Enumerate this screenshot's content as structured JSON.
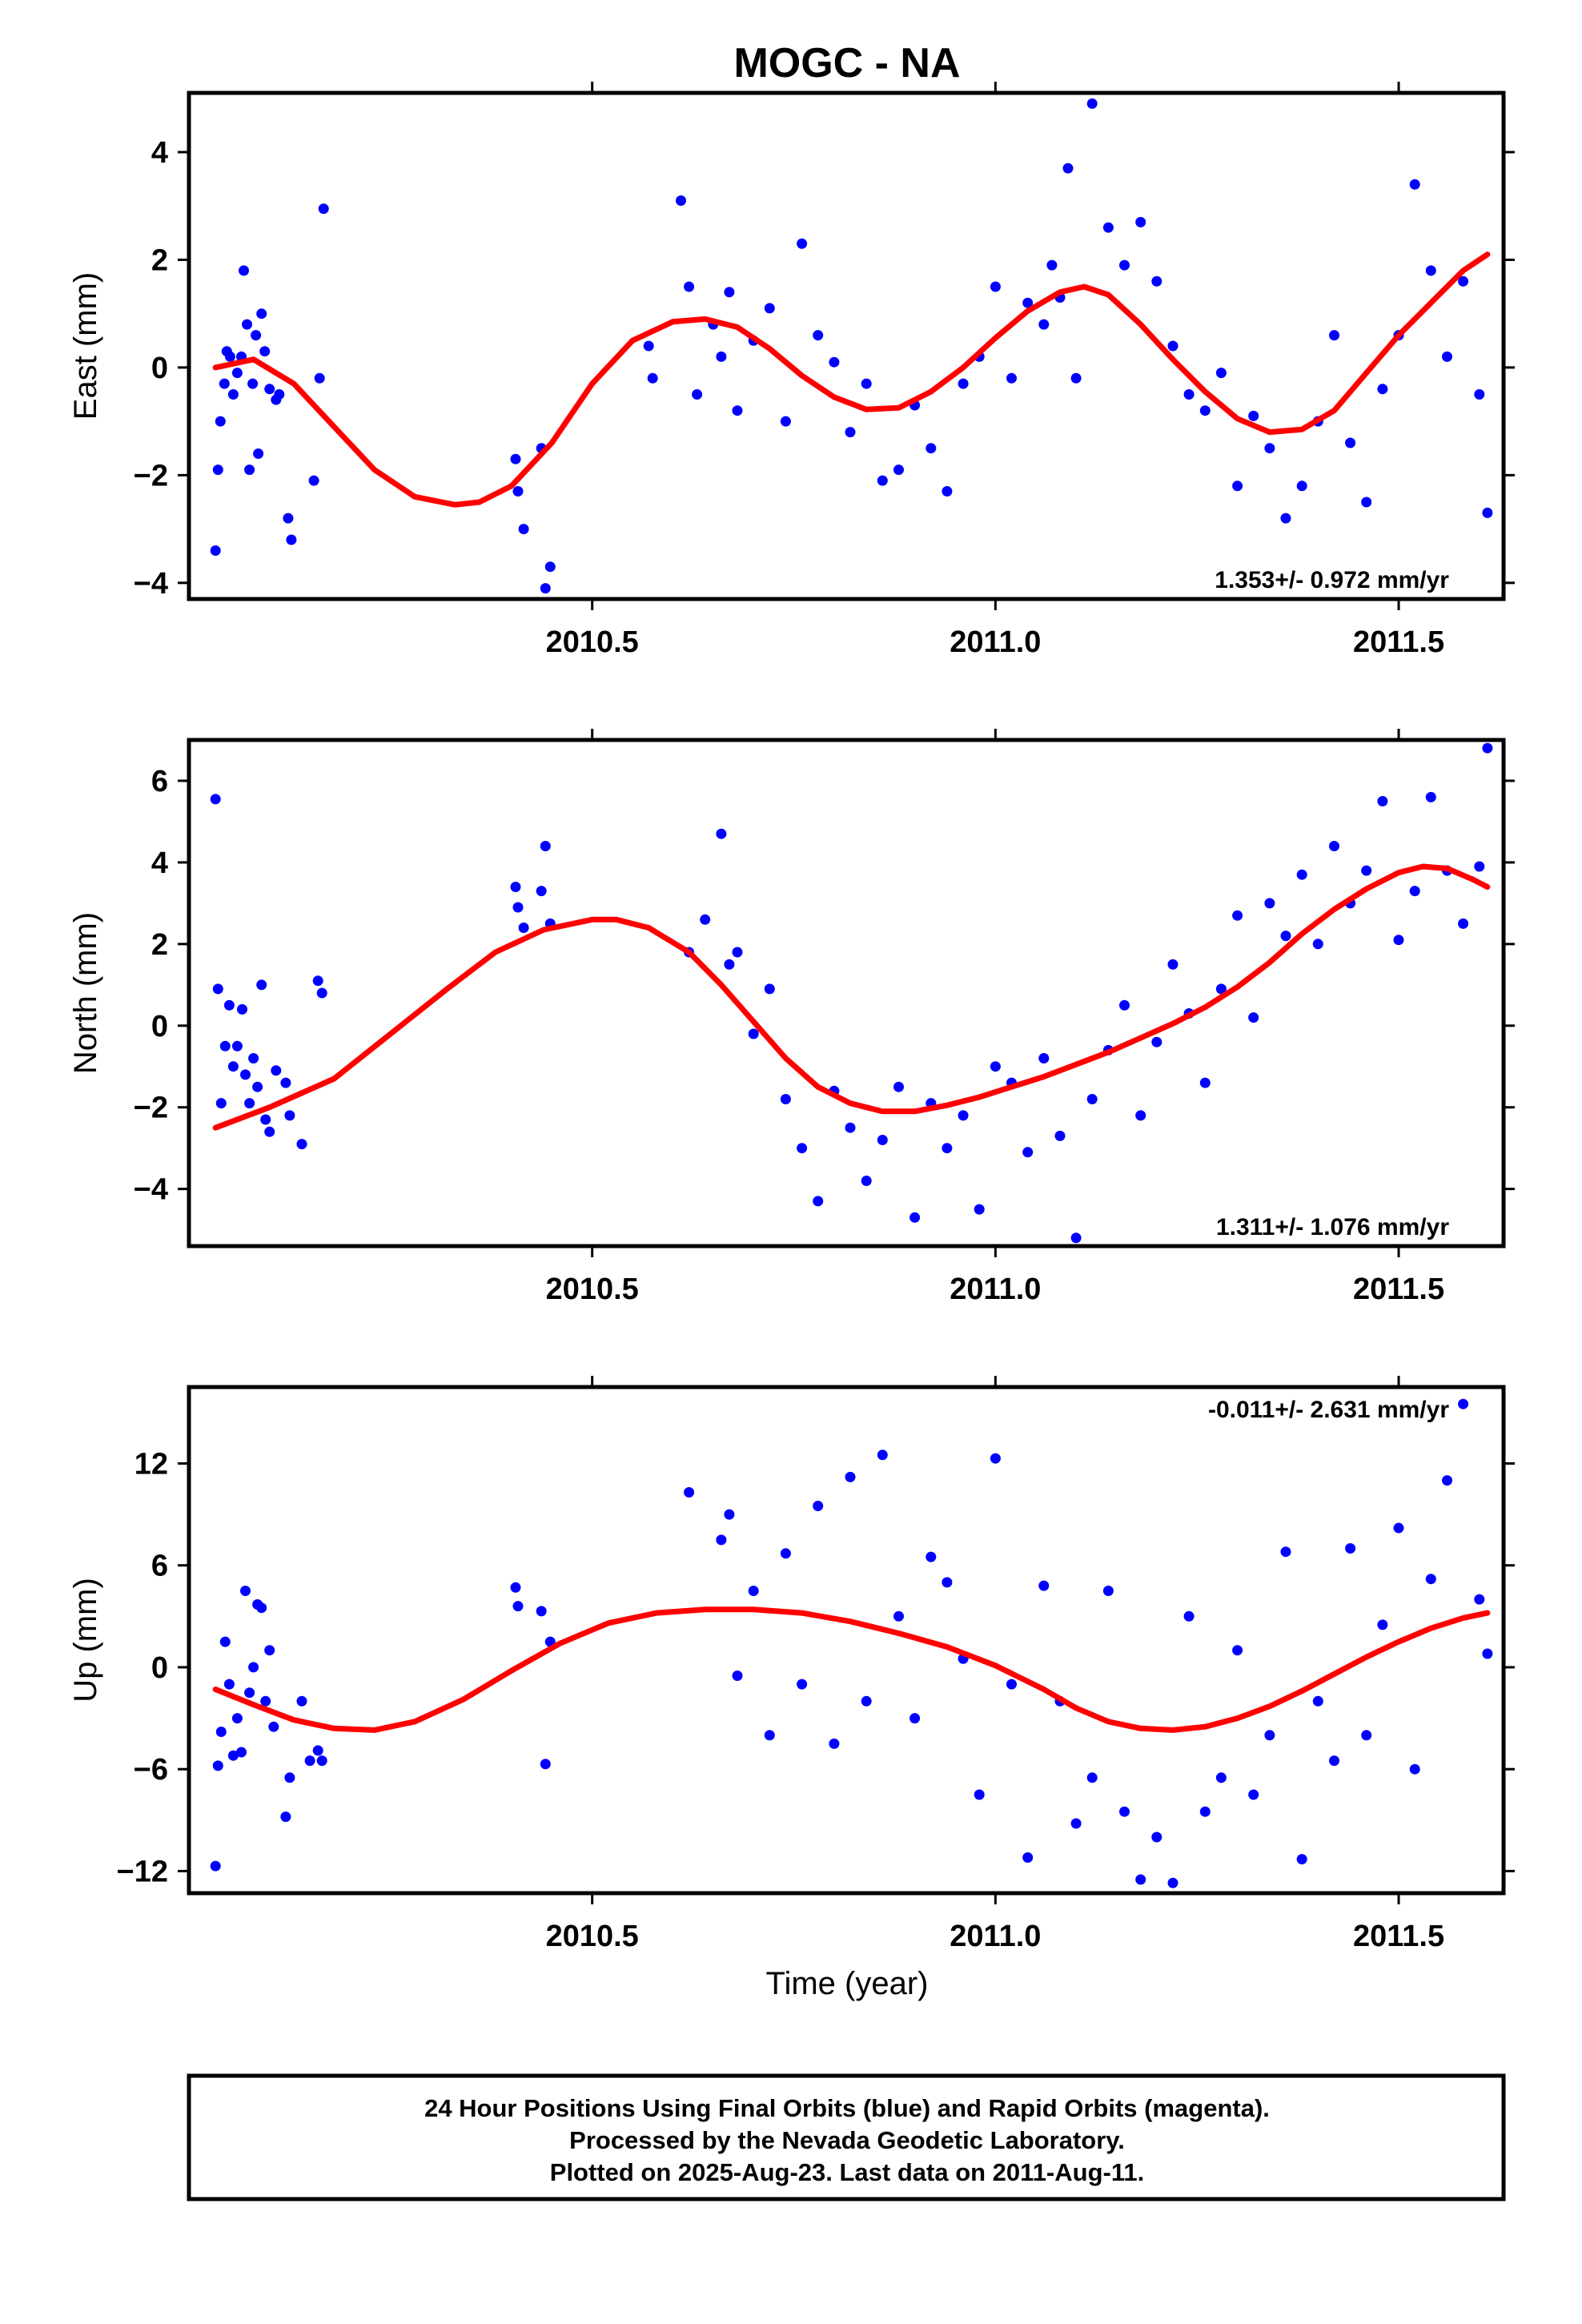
{
  "title": "MOGC - NA",
  "x_label": "Time (year)",
  "footer": {
    "line1": "24 Hour Positions Using Final Orbits (blue) and Rapid Orbits (magenta).",
    "line2": "Processed by the Nevada Geodetic Laboratory.",
    "line3": "Plotted on 2025-Aug-23. Last data on 2011-Aug-11."
  },
  "colors": {
    "points": "#0000ff",
    "fit": "#ff0000",
    "frame": "#000000"
  },
  "chart_data": [
    {
      "type": "scatter",
      "component": "East",
      "ylabel": "East (mm)",
      "xlim": [
        2010.0,
        2011.63
      ],
      "ylim": [
        -4.3,
        5.1
      ],
      "xticks": [
        2010.5,
        2011.0,
        2011.5
      ],
      "xtick_labels": [
        "2010.5",
        "2011.0",
        "2011.5"
      ],
      "yticks": [
        -4,
        -2,
        0,
        2,
        4
      ],
      "ytick_labels": [
        "−4",
        "−2",
        "0",
        "2",
        "4"
      ],
      "rate_text": "1.353+/- 0.972 mm/yr",
      "rate_position": "bottom-right",
      "series": [
        {
          "style": "points",
          "x": [
            2010.033,
            2010.036,
            2010.039,
            2010.044,
            2010.047,
            2010.051,
            2010.055,
            2010.06,
            2010.065,
            2010.068,
            2010.072,
            2010.075,
            2010.079,
            2010.083,
            2010.086,
            2010.09,
            2010.094,
            2010.1,
            2010.108,
            2010.112,
            2010.123,
            2010.127,
            2010.155,
            2010.162,
            2010.167,
            2010.405,
            2010.408,
            2010.415,
            2010.437,
            2010.442,
            2010.448,
            2010.57,
            2010.575,
            2010.61,
            2010.62,
            2010.63,
            2010.65,
            2010.66,
            2010.67,
            2010.68,
            2010.7,
            2010.72,
            2010.74,
            2010.76,
            2010.78,
            2010.8,
            2010.82,
            2010.84,
            2010.86,
            2010.88,
            2010.9,
            2010.92,
            2010.94,
            2010.96,
            2010.98,
            2011.0,
            2011.02,
            2011.04,
            2011.06,
            2011.07,
            2011.08,
            2011.09,
            2011.1,
            2011.12,
            2011.14,
            2011.16,
            2011.18,
            2011.2,
            2011.22,
            2011.24,
            2011.26,
            2011.28,
            2011.3,
            2011.32,
            2011.34,
            2011.36,
            2011.38,
            2011.4,
            2011.42,
            2011.44,
            2011.46,
            2011.48,
            2011.5,
            2011.52,
            2011.54,
            2011.56,
            2011.58,
            2011.6,
            2011.61
          ],
          "y": [
            -3.4,
            -1.9,
            -1.0,
            -0.3,
            0.3,
            0.2,
            -0.5,
            -0.1,
            0.2,
            1.8,
            0.8,
            -1.9,
            -0.3,
            0.6,
            -1.6,
            1.0,
            0.3,
            -0.4,
            -0.6,
            -0.5,
            -2.8,
            -3.2,
            -2.1,
            -0.2,
            2.95,
            -1.7,
            -2.3,
            -3.0,
            -1.5,
            -4.1,
            -3.7,
            0.4,
            -0.2,
            3.1,
            1.5,
            -0.5,
            0.8,
            0.2,
            1.4,
            -0.8,
            0.5,
            1.1,
            -1.0,
            2.3,
            0.6,
            0.1,
            -1.2,
            -0.3,
            -2.1,
            -1.9,
            -0.7,
            -1.5,
            -2.3,
            -0.3,
            0.2,
            1.5,
            -0.2,
            1.2,
            0.8,
            1.9,
            1.3,
            3.7,
            -0.2,
            4.9,
            2.6,
            1.9,
            2.7,
            1.6,
            0.4,
            -0.5,
            -0.8,
            -0.1,
            -2.2,
            -0.9,
            -1.5,
            -2.8,
            -2.2,
            -1.0,
            0.6,
            -1.4,
            -2.5,
            -0.4,
            0.6,
            3.4,
            1.8,
            0.2,
            1.6,
            -0.5,
            -2.7
          ]
        },
        {
          "style": "line",
          "x": [
            2010.033,
            2010.08,
            2010.13,
            2010.18,
            2010.23,
            2010.28,
            2010.33,
            2010.36,
            2010.4,
            2010.45,
            2010.5,
            2010.55,
            2010.6,
            2010.64,
            2010.68,
            2010.72,
            2010.76,
            2010.8,
            2010.84,
            2010.88,
            2010.92,
            2010.96,
            2011.0,
            2011.04,
            2011.08,
            2011.11,
            2011.14,
            2011.18,
            2011.22,
            2011.26,
            2011.3,
            2011.34,
            2011.38,
            2011.42,
            2011.46,
            2011.5,
            2011.54,
            2011.58,
            2011.61
          ],
          "y": [
            0.0,
            0.15,
            -0.3,
            -1.1,
            -1.9,
            -2.4,
            -2.55,
            -2.5,
            -2.2,
            -1.4,
            -0.3,
            0.5,
            0.85,
            0.9,
            0.75,
            0.35,
            -0.15,
            -0.55,
            -0.78,
            -0.75,
            -0.45,
            0.0,
            0.55,
            1.05,
            1.4,
            1.5,
            1.35,
            0.8,
            0.15,
            -0.45,
            -0.95,
            -1.2,
            -1.15,
            -0.8,
            -0.1,
            0.6,
            1.2,
            1.8,
            2.1
          ]
        }
      ]
    },
    {
      "type": "scatter",
      "component": "North",
      "ylabel": "North (mm)",
      "xlim": [
        2010.0,
        2011.63
      ],
      "ylim": [
        -5.4,
        7.0
      ],
      "xticks": [
        2010.5,
        2011.0,
        2011.5
      ],
      "xtick_labels": [
        "2010.5",
        "2011.0",
        "2011.5"
      ],
      "yticks": [
        -4,
        -2,
        0,
        2,
        4,
        6
      ],
      "ytick_labels": [
        "−4",
        "−2",
        "0",
        "2",
        "4",
        "6"
      ],
      "rate_text": "1.311+/- 1.076 mm/yr",
      "rate_position": "bottom-right",
      "series": [
        {
          "style": "points",
          "x": [
            2010.033,
            2010.036,
            2010.04,
            2010.045,
            2010.05,
            2010.055,
            2010.06,
            2010.066,
            2010.07,
            2010.075,
            2010.08,
            2010.085,
            2010.09,
            2010.095,
            2010.1,
            2010.108,
            2010.12,
            2010.125,
            2010.14,
            2010.16,
            2010.165,
            2010.405,
            2010.408,
            2010.415,
            2010.437,
            2010.442,
            2010.448,
            2010.62,
            2010.64,
            2010.66,
            2010.67,
            2010.68,
            2010.7,
            2010.72,
            2010.74,
            2010.76,
            2010.78,
            2010.8,
            2010.82,
            2010.84,
            2010.86,
            2010.88,
            2010.9,
            2010.92,
            2010.94,
            2010.96,
            2010.98,
            2011.0,
            2011.02,
            2011.04,
            2011.06,
            2011.08,
            2011.1,
            2011.12,
            2011.14,
            2011.16,
            2011.18,
            2011.2,
            2011.22,
            2011.24,
            2011.26,
            2011.28,
            2011.3,
            2011.32,
            2011.34,
            2011.36,
            2011.38,
            2011.4,
            2011.42,
            2011.44,
            2011.46,
            2011.48,
            2011.5,
            2011.52,
            2011.54,
            2011.56,
            2011.58,
            2011.6,
            2011.61
          ],
          "y": [
            5.55,
            0.9,
            -1.9,
            -0.5,
            0.5,
            -1.0,
            -0.5,
            0.4,
            -1.2,
            -1.9,
            -0.8,
            -1.5,
            1.0,
            -2.3,
            -2.6,
            -1.1,
            -1.4,
            -2.2,
            -2.9,
            1.1,
            0.8,
            3.4,
            2.9,
            2.4,
            3.3,
            4.4,
            2.5,
            1.8,
            2.6,
            4.7,
            1.5,
            1.8,
            -0.2,
            0.9,
            -1.8,
            -3.0,
            -4.3,
            -1.6,
            -2.5,
            -3.8,
            -2.8,
            -1.5,
            -4.7,
            -1.9,
            -3.0,
            -2.2,
            -4.5,
            -1.0,
            -1.4,
            -3.1,
            -0.8,
            -2.7,
            -5.2,
            -1.8,
            -0.6,
            0.5,
            -2.2,
            -0.4,
            1.5,
            0.3,
            -1.4,
            0.9,
            2.7,
            0.2,
            3.0,
            2.2,
            3.7,
            2.0,
            4.4,
            3.0,
            3.8,
            5.5,
            2.1,
            3.3,
            5.6,
            3.8,
            2.5,
            3.9,
            6.8
          ]
        },
        {
          "style": "line",
          "x": [
            2010.033,
            2010.1,
            2010.18,
            2010.25,
            2010.32,
            2010.38,
            2010.44,
            2010.5,
            2010.53,
            2010.57,
            2010.62,
            2010.66,
            2010.7,
            2010.74,
            2010.78,
            2010.82,
            2010.86,
            2010.9,
            2010.94,
            2010.98,
            2011.02,
            2011.06,
            2011.1,
            2011.14,
            2011.18,
            2011.22,
            2011.26,
            2011.3,
            2011.34,
            2011.38,
            2011.42,
            2011.46,
            2011.5,
            2011.53,
            2011.56,
            2011.59,
            2011.61
          ],
          "y": [
            -2.5,
            -2.0,
            -1.3,
            -0.2,
            0.9,
            1.8,
            2.35,
            2.6,
            2.6,
            2.4,
            1.8,
            1.0,
            0.1,
            -0.8,
            -1.5,
            -1.9,
            -2.1,
            -2.1,
            -1.95,
            -1.75,
            -1.5,
            -1.25,
            -0.95,
            -0.65,
            -0.3,
            0.05,
            0.45,
            0.95,
            1.55,
            2.25,
            2.85,
            3.35,
            3.75,
            3.9,
            3.85,
            3.6,
            3.4
          ]
        }
      ]
    },
    {
      "type": "scatter",
      "component": "Up",
      "ylabel": "Up (mm)",
      "xlim": [
        2010.0,
        2011.63
      ],
      "ylim": [
        -13.3,
        16.5
      ],
      "xticks": [
        2010.5,
        2011.0,
        2011.5
      ],
      "xtick_labels": [
        "2010.5",
        "2011.0",
        "2011.5"
      ],
      "yticks": [
        -12,
        -6,
        0,
        6,
        12
      ],
      "ytick_labels": [
        "−12",
        "−6",
        "0",
        "6",
        "12"
      ],
      "rate_text": "-0.011+/- 2.631 mm/yr",
      "rate_position": "top-right",
      "series": [
        {
          "style": "points",
          "x": [
            2010.033,
            2010.036,
            2010.04,
            2010.045,
            2010.05,
            2010.055,
            2010.06,
            2010.065,
            2010.07,
            2010.075,
            2010.08,
            2010.085,
            2010.09,
            2010.095,
            2010.1,
            2010.105,
            2010.12,
            2010.125,
            2010.14,
            2010.15,
            2010.16,
            2010.165,
            2010.405,
            2010.408,
            2010.437,
            2010.442,
            2010.448,
            2010.62,
            2010.66,
            2010.67,
            2010.68,
            2010.7,
            2010.72,
            2010.74,
            2010.76,
            2010.78,
            2010.8,
            2010.82,
            2010.84,
            2010.86,
            2010.88,
            2010.9,
            2010.92,
            2010.94,
            2010.96,
            2010.98,
            2011.0,
            2011.02,
            2011.04,
            2011.06,
            2011.08,
            2011.1,
            2011.12,
            2011.14,
            2011.16,
            2011.18,
            2011.2,
            2011.22,
            2011.24,
            2011.26,
            2011.28,
            2011.3,
            2011.32,
            2011.34,
            2011.36,
            2011.38,
            2011.4,
            2011.42,
            2011.44,
            2011.46,
            2011.48,
            2011.5,
            2011.52,
            2011.54,
            2011.56,
            2011.58,
            2011.6,
            2011.61
          ],
          "y": [
            -11.7,
            -5.8,
            -3.8,
            1.5,
            -1.0,
            -5.2,
            -3.0,
            -5.0,
            4.5,
            -1.5,
            0.0,
            3.7,
            3.5,
            -2.0,
            1.0,
            -3.5,
            -8.8,
            -6.5,
            -2.0,
            -5.5,
            -4.9,
            -5.5,
            4.7,
            3.6,
            3.3,
            -5.7,
            1.5,
            10.3,
            7.5,
            9.0,
            -0.5,
            4.5,
            -4.0,
            6.7,
            -1.0,
            9.5,
            -4.5,
            11.2,
            -2.0,
            12.5,
            3.0,
            -3.0,
            6.5,
            5.0,
            0.5,
            -7.5,
            12.3,
            -1.0,
            -11.2,
            4.8,
            -2.0,
            -9.2,
            -6.5,
            4.5,
            -8.5,
            -12.5,
            -10.0,
            -12.7,
            3.0,
            -8.5,
            -6.5,
            1.0,
            -7.5,
            -4.0,
            6.8,
            -11.3,
            -2.0,
            -5.5,
            7.0,
            -4.0,
            2.5,
            8.2,
            -6.0,
            5.2,
            11.0,
            15.5,
            4.0,
            0.8
          ]
        },
        {
          "style": "line",
          "x": [
            2010.033,
            2010.08,
            2010.13,
            2010.18,
            2010.23,
            2010.28,
            2010.34,
            2010.4,
            2010.46,
            2010.52,
            2010.58,
            2010.64,
            2010.7,
            2010.76,
            2010.82,
            2010.88,
            2010.94,
            2011.0,
            2011.06,
            2011.1,
            2011.14,
            2011.18,
            2011.22,
            2011.26,
            2011.3,
            2011.34,
            2011.38,
            2011.42,
            2011.46,
            2011.5,
            2011.54,
            2011.58,
            2011.61
          ],
          "y": [
            -1.3,
            -2.2,
            -3.1,
            -3.6,
            -3.7,
            -3.2,
            -1.9,
            -0.2,
            1.4,
            2.6,
            3.2,
            3.4,
            3.4,
            3.2,
            2.7,
            2.0,
            1.2,
            0.1,
            -1.3,
            -2.4,
            -3.2,
            -3.6,
            -3.7,
            -3.5,
            -3.0,
            -2.3,
            -1.4,
            -0.4,
            0.6,
            1.5,
            2.3,
            2.9,
            3.2
          ]
        }
      ]
    }
  ]
}
